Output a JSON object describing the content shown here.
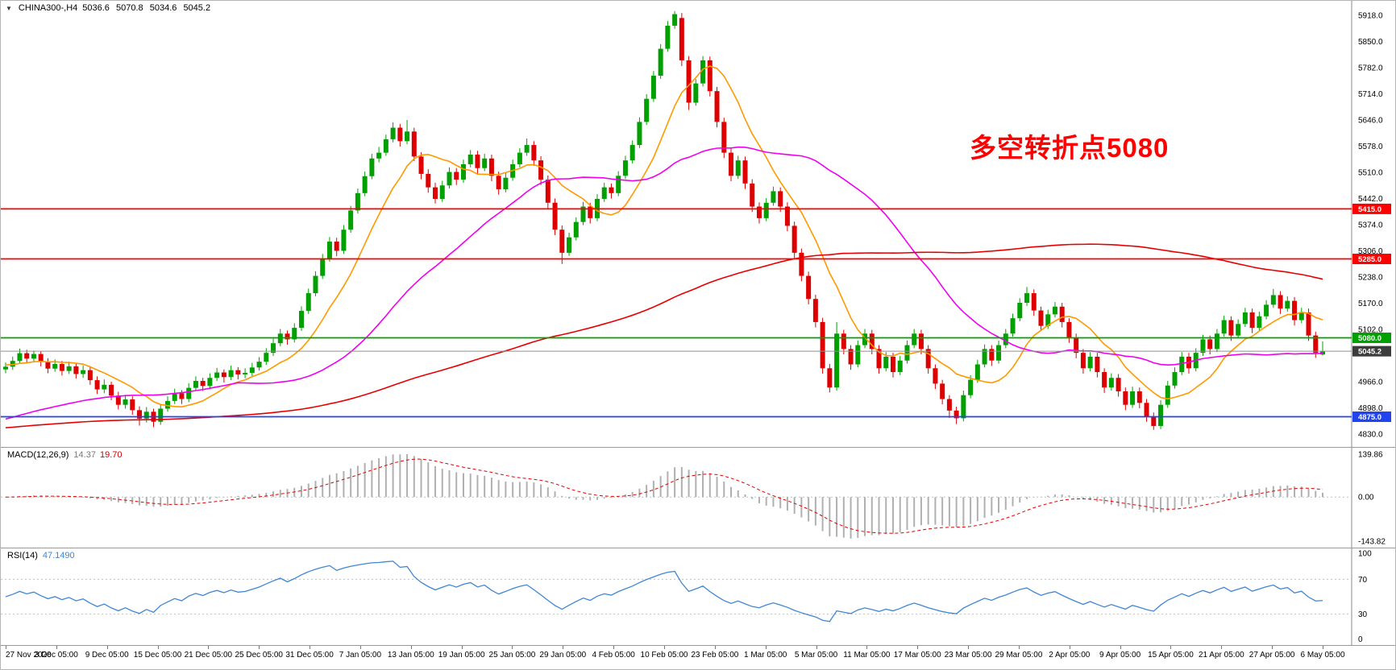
{
  "header": {
    "collapse_icon": "▼",
    "symbol": "CHINA300-,H4",
    "open": "5036.6",
    "high": "5070.8",
    "low": "5034.6",
    "close": "5045.2"
  },
  "annotation": {
    "text": "多空转折点5080",
    "color": "#ff0000"
  },
  "colors": {
    "bull": "#00a000",
    "bear": "#de0000",
    "ma_fast": "#ff9900",
    "ma_medium": "#f000f0",
    "ma_slow": "#e80000",
    "price_line": "#909090",
    "price_tag_bg": "#3c3c3c",
    "macd_hist": "#b0b0b0",
    "macd_signal": "#e00000",
    "rsi_line": "#3e86d6",
    "level_dotted": "#c0c0c0"
  },
  "chart_data": {
    "type": "candlestick+indicators",
    "symbol": "CHINA300-",
    "timeframe": "H4",
    "price_axis": {
      "max": 5918.0,
      "min": 4830.0,
      "step": 68.0,
      "labels": [
        "5918.0",
        "5850.0",
        "5782.0",
        "5714.0",
        "5646.0",
        "5578.0",
        "5510.0",
        "5442.0",
        "5374.0",
        "5306.0",
        "5238.0",
        "5170.0",
        "5102.0",
        "5034.0",
        "4966.0",
        "4898.0",
        "4830.0"
      ]
    },
    "time_labels": [
      "27 Nov 2020",
      "3 Dec 05:00",
      "9 Dec 05:00",
      "15 Dec 05:00",
      "21 Dec 05:00",
      "25 Dec 05:00",
      "31 Dec 05:00",
      "7 Jan 05:00",
      "13 Jan 05:00",
      "19 Jan 05:00",
      "25 Jan 05:00",
      "29 Jan 05:00",
      "4 Feb 05:00",
      "10 Feb 05:00",
      "23 Feb 05:00",
      "1 Mar 05:00",
      "5 Mar 05:00",
      "11 Mar 05:00",
      "17 Mar 05:00",
      "23 Mar 05:00",
      "29 Mar 05:00",
      "2 Apr 05:00",
      "9 Apr 05:00",
      "15 Apr 05:00",
      "21 Apr 05:00",
      "27 Apr 05:00",
      "6 May 05:00"
    ],
    "levels": [
      {
        "value": 5415.0,
        "label": "5415.0",
        "color": "#ff0000"
      },
      {
        "value": 5285.0,
        "label": "5285.0",
        "color": "#ff0000"
      },
      {
        "value": 5080.0,
        "label": "5080.0",
        "color": "#00a000"
      },
      {
        "value": 4875.0,
        "label": "4875.0",
        "color": "#2244ee"
      }
    ],
    "current_price": {
      "value": 5045.2,
      "label": "5045.2"
    },
    "moving_averages": [
      {
        "name": "fast",
        "period": 10,
        "pad": 5010,
        "color": "#ff9900"
      },
      {
        "name": "medium",
        "period": 34,
        "pad": 4865,
        "color": "#f000f0"
      },
      {
        "name": "slow",
        "period": 120,
        "pad": 4845,
        "color": "#e80000"
      }
    ],
    "macd": {
      "label": "MACD(12,26,9)",
      "fast": 12,
      "slow": 26,
      "signal": 9,
      "value_main": "14.37",
      "value_signal": "19.70",
      "range": [
        -143.82,
        139.86
      ],
      "axis_labels": [
        {
          "text": "139.86",
          "v": 139.86
        },
        {
          "text": "0.00",
          "v": 0
        },
        {
          "text": "-143.82",
          "v": -143.82
        }
      ]
    },
    "rsi": {
      "label": "RSI(14)",
      "period": 14,
      "value": "47.1490",
      "levels": [
        70,
        30
      ],
      "axis_labels": [
        {
          "text": "100",
          "v": 100
        },
        {
          "text": "70",
          "v": 70
        },
        {
          "text": "30",
          "v": 30
        },
        {
          "text": "0",
          "v": 0
        }
      ]
    },
    "candles_ohlc": [
      [
        4998,
        5016,
        4988,
        5005
      ],
      [
        5005,
        5031,
        4997,
        5020
      ],
      [
        5020,
        5052,
        5012,
        5040
      ],
      [
        5040,
        5049,
        5014,
        5026
      ],
      [
        5026,
        5047,
        5018,
        5038
      ],
      [
        5038,
        5046,
        5006,
        5018
      ],
      [
        5018,
        5027,
        4988,
        5000
      ],
      [
        5000,
        5024,
        4992,
        5012
      ],
      [
        5012,
        5020,
        4982,
        4994
      ],
      [
        4994,
        5018,
        4986,
        5006
      ],
      [
        5006,
        5014,
        4974,
        4986
      ],
      [
        4986,
        5008,
        4976,
        4996
      ],
      [
        4996,
        5004,
        4958,
        4970
      ],
      [
        4970,
        4980,
        4934,
        4946
      ],
      [
        4946,
        4972,
        4936,
        4958
      ],
      [
        4958,
        4966,
        4918,
        4930
      ],
      [
        4930,
        4940,
        4894,
        4906
      ],
      [
        4906,
        4932,
        4896,
        4920
      ],
      [
        4920,
        4928,
        4880,
        4892
      ],
      [
        4892,
        4902,
        4852,
        4870
      ],
      [
        4870,
        4900,
        4860,
        4888
      ],
      [
        4888,
        4896,
        4848,
        4862
      ],
      [
        4862,
        4908,
        4854,
        4896
      ],
      [
        4896,
        4928,
        4888,
        4916
      ],
      [
        4916,
        4948,
        4908,
        4936
      ],
      [
        4936,
        4944,
        4908,
        4921
      ],
      [
        4921,
        4962,
        4913,
        4950
      ],
      [
        4950,
        4980,
        4942,
        4968
      ],
      [
        4968,
        4976,
        4942,
        4955
      ],
      [
        4955,
        4988,
        4947,
        4976
      ],
      [
        4976,
        5002,
        4968,
        4990
      ],
      [
        4990,
        4998,
        4964,
        4978
      ],
      [
        4978,
        5008,
        4970,
        4996
      ],
      [
        4996,
        5004,
        4972,
        4985
      ],
      [
        4985,
        5001,
        4975,
        4989
      ],
      [
        4989,
        5015,
        4981,
        5003
      ],
      [
        5003,
        5030,
        4995,
        5018
      ],
      [
        5018,
        5053,
        5010,
        5041
      ],
      [
        5041,
        5078,
        5033,
        5066
      ],
      [
        5066,
        5103,
        5058,
        5091
      ],
      [
        5091,
        5099,
        5062,
        5076
      ],
      [
        5076,
        5118,
        5068,
        5106
      ],
      [
        5106,
        5162,
        5098,
        5150
      ],
      [
        5150,
        5208,
        5142,
        5196
      ],
      [
        5196,
        5253,
        5188,
        5241
      ],
      [
        5241,
        5298,
        5233,
        5286
      ],
      [
        5286,
        5342,
        5278,
        5330
      ],
      [
        5330,
        5340,
        5292,
        5306
      ],
      [
        5306,
        5373,
        5298,
        5361
      ],
      [
        5361,
        5423,
        5353,
        5411
      ],
      [
        5411,
        5468,
        5403,
        5456
      ],
      [
        5456,
        5512,
        5448,
        5500
      ],
      [
        5500,
        5558,
        5492,
        5546
      ],
      [
        5546,
        5576,
        5536,
        5561
      ],
      [
        5561,
        5608,
        5553,
        5596
      ],
      [
        5596,
        5640,
        5588,
        5626
      ],
      [
        5626,
        5636,
        5577,
        5591
      ],
      [
        5591,
        5646,
        5583,
        5616
      ],
      [
        5616,
        5626,
        5539,
        5551
      ],
      [
        5551,
        5562,
        5492,
        5506
      ],
      [
        5506,
        5518,
        5457,
        5471
      ],
      [
        5471,
        5483,
        5429,
        5441
      ],
      [
        5441,
        5488,
        5433,
        5476
      ],
      [
        5476,
        5523,
        5468,
        5511
      ],
      [
        5511,
        5521,
        5477,
        5491
      ],
      [
        5491,
        5543,
        5483,
        5531
      ],
      [
        5531,
        5568,
        5523,
        5556
      ],
      [
        5556,
        5566,
        5507,
        5521
      ],
      [
        5521,
        5558,
        5513,
        5546
      ],
      [
        5546,
        5556,
        5487,
        5501
      ],
      [
        5501,
        5512,
        5452,
        5466
      ],
      [
        5466,
        5508,
        5458,
        5496
      ],
      [
        5496,
        5543,
        5488,
        5531
      ],
      [
        5531,
        5573,
        5523,
        5561
      ],
      [
        5561,
        5598,
        5553,
        5581
      ],
      [
        5581,
        5591,
        5527,
        5541
      ],
      [
        5541,
        5552,
        5477,
        5491
      ],
      [
        5491,
        5502,
        5417,
        5431
      ],
      [
        5431,
        5442,
        5347,
        5361
      ],
      [
        5361,
        5372,
        5272,
        5301
      ],
      [
        5301,
        5353,
        5293,
        5341
      ],
      [
        5341,
        5393,
        5333,
        5381
      ],
      [
        5381,
        5433,
        5373,
        5421
      ],
      [
        5421,
        5431,
        5377,
        5391
      ],
      [
        5391,
        5453,
        5383,
        5441
      ],
      [
        5441,
        5483,
        5433,
        5471
      ],
      [
        5471,
        5481,
        5442,
        5456
      ],
      [
        5456,
        5513,
        5448,
        5501
      ],
      [
        5501,
        5553,
        5493,
        5541
      ],
      [
        5541,
        5593,
        5533,
        5581
      ],
      [
        5581,
        5653,
        5573,
        5641
      ],
      [
        5641,
        5713,
        5633,
        5701
      ],
      [
        5701,
        5773,
        5693,
        5761
      ],
      [
        5761,
        5843,
        5753,
        5831
      ],
      [
        5831,
        5903,
        5823,
        5891
      ],
      [
        5891,
        5929,
        5883,
        5921
      ],
      [
        5911,
        5924,
        5786,
        5801
      ],
      [
        5801,
        5812,
        5672,
        5691
      ],
      [
        5691,
        5752,
        5683,
        5741
      ],
      [
        5741,
        5812,
        5733,
        5801
      ],
      [
        5801,
        5811,
        5707,
        5721
      ],
      [
        5721,
        5732,
        5627,
        5641
      ],
      [
        5641,
        5652,
        5547,
        5561
      ],
      [
        5561,
        5572,
        5487,
        5501
      ],
      [
        5501,
        5553,
        5493,
        5541
      ],
      [
        5541,
        5551,
        5467,
        5481
      ],
      [
        5481,
        5492,
        5407,
        5421
      ],
      [
        5421,
        5432,
        5377,
        5391
      ],
      [
        5391,
        5443,
        5383,
        5431
      ],
      [
        5431,
        5473,
        5423,
        5461
      ],
      [
        5461,
        5471,
        5407,
        5421
      ],
      [
        5421,
        5432,
        5357,
        5371
      ],
      [
        5371,
        5382,
        5287,
        5301
      ],
      [
        5301,
        5312,
        5227,
        5241
      ],
      [
        5241,
        5252,
        5167,
        5181
      ],
      [
        5181,
        5192,
        5107,
        5121
      ],
      [
        5121,
        5132,
        4987,
        5001
      ],
      [
        5001,
        5012,
        4938,
        4951
      ],
      [
        4951,
        5121,
        4943,
        5091
      ],
      [
        5091,
        5101,
        5037,
        5051
      ],
      [
        5051,
        5061,
        4997,
        5011
      ],
      [
        5011,
        5073,
        5003,
        5061
      ],
      [
        5061,
        5103,
        5053,
        5091
      ],
      [
        5091,
        5101,
        5037,
        5051
      ],
      [
        5051,
        5061,
        4987,
        5001
      ],
      [
        5001,
        5043,
        4993,
        5031
      ],
      [
        5031,
        5041,
        4977,
        4991
      ],
      [
        4991,
        5033,
        4983,
        5021
      ],
      [
        5021,
        5073,
        5013,
        5061
      ],
      [
        5061,
        5103,
        5053,
        5091
      ],
      [
        5091,
        5101,
        5037,
        5051
      ],
      [
        5051,
        5061,
        4987,
        5001
      ],
      [
        5001,
        5011,
        4947,
        4961
      ],
      [
        4961,
        4971,
        4907,
        4921
      ],
      [
        4921,
        4931,
        4872,
        4891
      ],
      [
        4891,
        4901,
        4856,
        4871
      ],
      [
        4871,
        4943,
        4863,
        4931
      ],
      [
        4931,
        4983,
        4923,
        4971
      ],
      [
        4971,
        5023,
        4963,
        5011
      ],
      [
        5011,
        5063,
        5003,
        5051
      ],
      [
        5051,
        5061,
        5007,
        5021
      ],
      [
        5021,
        5073,
        5013,
        5061
      ],
      [
        5061,
        5103,
        5053,
        5091
      ],
      [
        5091,
        5143,
        5083,
        5131
      ],
      [
        5131,
        5183,
        5123,
        5171
      ],
      [
        5171,
        5212,
        5163,
        5196
      ],
      [
        5196,
        5206,
        5137,
        5151
      ],
      [
        5151,
        5161,
        5097,
        5111
      ],
      [
        5111,
        5153,
        5103,
        5141
      ],
      [
        5141,
        5173,
        5133,
        5161
      ],
      [
        5161,
        5171,
        5107,
        5121
      ],
      [
        5121,
        5131,
        5067,
        5081
      ],
      [
        5081,
        5091,
        5027,
        5041
      ],
      [
        5041,
        5051,
        4987,
        5001
      ],
      [
        5001,
        5043,
        4993,
        5031
      ],
      [
        5031,
        5041,
        4977,
        4991
      ],
      [
        4991,
        5001,
        4937,
        4951
      ],
      [
        4951,
        4988,
        4943,
        4976
      ],
      [
        4976,
        4986,
        4927,
        4941
      ],
      [
        4941,
        4951,
        4892,
        4906
      ],
      [
        4906,
        4953,
        4898,
        4941
      ],
      [
        4941,
        4951,
        4897,
        4911
      ],
      [
        4911,
        4921,
        4862,
        4876
      ],
      [
        4876,
        4886,
        4841,
        4851
      ],
      [
        4851,
        4918,
        4843,
        4906
      ],
      [
        4906,
        4968,
        4898,
        4956
      ],
      [
        4956,
        5003,
        4948,
        4991
      ],
      [
        4991,
        5043,
        4983,
        5031
      ],
      [
        5031,
        5041,
        4987,
        5001
      ],
      [
        5001,
        5053,
        4993,
        5041
      ],
      [
        5041,
        5088,
        5033,
        5076
      ],
      [
        5076,
        5086,
        5037,
        5051
      ],
      [
        5051,
        5103,
        5043,
        5091
      ],
      [
        5091,
        5138,
        5083,
        5126
      ],
      [
        5126,
        5136,
        5072,
        5086
      ],
      [
        5086,
        5128,
        5078,
        5116
      ],
      [
        5116,
        5158,
        5108,
        5146
      ],
      [
        5146,
        5156,
        5092,
        5106
      ],
      [
        5106,
        5148,
        5098,
        5136
      ],
      [
        5136,
        5178,
        5128,
        5166
      ],
      [
        5166,
        5207,
        5158,
        5191
      ],
      [
        5191,
        5201,
        5142,
        5156
      ],
      [
        5156,
        5188,
        5148,
        5176
      ],
      [
        5176,
        5186,
        5112,
        5126
      ],
      [
        5126,
        5158,
        5118,
        5146
      ],
      [
        5146,
        5156,
        5072,
        5086
      ],
      [
        5086,
        5096,
        5028,
        5041
      ],
      [
        5036.6,
        5070.8,
        5034.6,
        5045.2
      ]
    ]
  }
}
